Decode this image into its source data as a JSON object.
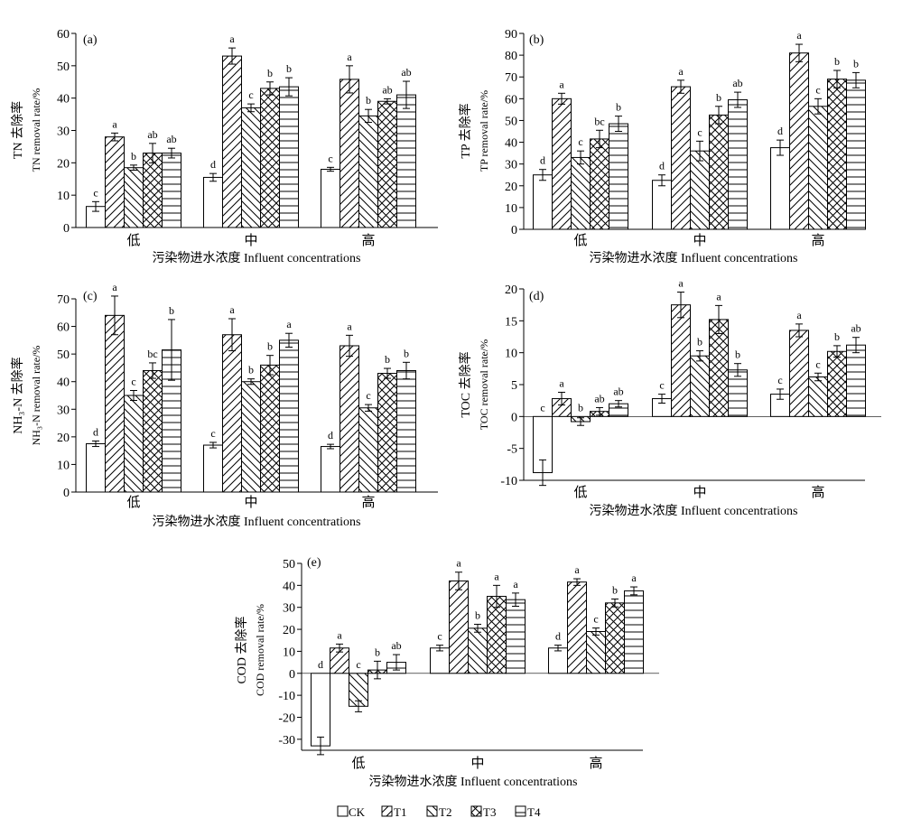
{
  "legend": [
    {
      "name": "CK",
      "pattern": "none"
    },
    {
      "name": "T1",
      "pattern": "diag-forward"
    },
    {
      "name": "T2",
      "pattern": "diag-back"
    },
    {
      "name": "T3",
      "pattern": "cross"
    },
    {
      "name": "T4",
      "pattern": "horizontal"
    }
  ],
  "chart_data": [
    {
      "type": "bar",
      "panel_label": "(a)",
      "ylabel_cn": "TN 去除率",
      "ylabel_en": "TN removal rate/%",
      "xlabel": "污染物进水浓度 Influent concentrations",
      "categories": [
        "低",
        "中",
        "高"
      ],
      "ylim": [
        0,
        60
      ],
      "yticks": [
        0,
        10,
        20,
        30,
        40,
        50,
        60
      ],
      "series": [
        {
          "name": "CK",
          "values": [
            6.5,
            15.5,
            18.0
          ],
          "errors": [
            1.5,
            1.2,
            0.6
          ],
          "letters": [
            "c",
            "d",
            "c"
          ]
        },
        {
          "name": "T1",
          "values": [
            28.0,
            53.0,
            45.8
          ],
          "errors": [
            1.2,
            2.5,
            4.2
          ],
          "letters": [
            "a",
            "a",
            "a"
          ]
        },
        {
          "name": "T2",
          "values": [
            18.5,
            37.0,
            34.5
          ],
          "errors": [
            0.8,
            1.2,
            2.0
          ],
          "letters": [
            "b",
            "c",
            "b"
          ]
        },
        {
          "name": "T3",
          "values": [
            23.0,
            43.0,
            39.0
          ],
          "errors": [
            3.0,
            2.0,
            0.8
          ],
          "letters": [
            "ab",
            "b",
            "ab"
          ]
        },
        {
          "name": "T4",
          "values": [
            23.0,
            43.5,
            41.0
          ],
          "errors": [
            1.5,
            2.8,
            4.2
          ],
          "letters": [
            "ab",
            "b",
            "ab"
          ]
        }
      ]
    },
    {
      "type": "bar",
      "panel_label": "(b)",
      "ylabel_cn": "TP 去除率",
      "ylabel_en": "TP removal rate/%",
      "xlabel": "污染物进水浓度 Influent concentrations",
      "categories": [
        "低",
        "中",
        "高"
      ],
      "ylim": [
        0,
        90
      ],
      "yticks": [
        0,
        10,
        20,
        30,
        40,
        50,
        60,
        70,
        80,
        90
      ],
      "series": [
        {
          "name": "CK",
          "values": [
            25.0,
            22.5,
            37.5
          ],
          "errors": [
            2.5,
            2.5,
            3.5
          ],
          "letters": [
            "d",
            "d",
            "d"
          ]
        },
        {
          "name": "T1",
          "values": [
            60.0,
            65.5,
            81.0
          ],
          "errors": [
            2.5,
            3.0,
            4.0
          ],
          "letters": [
            "a",
            "a",
            "a"
          ]
        },
        {
          "name": "T2",
          "values": [
            33.0,
            36.0,
            56.5
          ],
          "errors": [
            3.0,
            4.5,
            3.5
          ],
          "letters": [
            "c",
            "c",
            "c"
          ]
        },
        {
          "name": "T3",
          "values": [
            41.5,
            52.5,
            69.0
          ],
          "errors": [
            4.0,
            4.0,
            4.0
          ],
          "letters": [
            "bc",
            "b",
            "b"
          ]
        },
        {
          "name": "T4",
          "values": [
            48.5,
            59.5,
            68.5
          ],
          "errors": [
            3.5,
            3.5,
            3.5
          ],
          "letters": [
            "b",
            "ab",
            "b"
          ]
        }
      ]
    },
    {
      "type": "bar",
      "panel_label": "(c)",
      "ylabel_cn": "NH₃-N 去除率",
      "ylabel_en": "NH₃-N removal rate/%",
      "xlabel": "污染物进水浓度 Influent concentrations",
      "categories": [
        "低",
        "中",
        "高"
      ],
      "ylim": [
        0,
        70
      ],
      "yticks": [
        0,
        10,
        20,
        30,
        40,
        50,
        60,
        70
      ],
      "series": [
        {
          "name": "CK",
          "values": [
            17.5,
            17.0,
            16.5
          ],
          "errors": [
            1.0,
            1.0,
            0.8
          ],
          "letters": [
            "d",
            "c",
            "d"
          ]
        },
        {
          "name": "T1",
          "values": [
            64.0,
            57.0,
            53.0
          ],
          "errors": [
            7.0,
            5.8,
            3.8
          ],
          "letters": [
            "a",
            "a",
            "a"
          ]
        },
        {
          "name": "T2",
          "values": [
            35.0,
            40.0,
            30.5
          ],
          "errors": [
            1.8,
            1.0,
            1.2
          ],
          "letters": [
            "c",
            "b",
            "c"
          ]
        },
        {
          "name": "T3",
          "values": [
            44.0,
            46.0,
            43.0
          ],
          "errors": [
            2.8,
            3.5,
            1.8
          ],
          "letters": [
            "bc",
            "b",
            "b"
          ]
        },
        {
          "name": "T4",
          "values": [
            51.5,
            55.0,
            44.0
          ],
          "errors": [
            11.0,
            2.5,
            3.0
          ],
          "letters": [
            "b",
            "a",
            "b"
          ]
        }
      ]
    },
    {
      "type": "bar",
      "panel_label": "(d)",
      "ylabel_cn": "TOC 去除率",
      "ylabel_en": "TOC removal rate/%",
      "xlabel": "污染物进水浓度 Influent concentrations",
      "categories": [
        "低",
        "中",
        "高"
      ],
      "ylim": [
        -10,
        20
      ],
      "yticks": [
        -10,
        -5,
        0,
        5,
        10,
        15,
        20
      ],
      "series": [
        {
          "name": "CK",
          "values": [
            -8.8,
            2.8,
            3.5
          ],
          "errors": [
            2.0,
            0.7,
            0.8
          ],
          "letters": [
            "c",
            "c",
            "c"
          ]
        },
        {
          "name": "T1",
          "values": [
            2.8,
            17.5,
            13.5
          ],
          "errors": [
            1.0,
            2.0,
            1.0
          ],
          "letters": [
            "a",
            "a",
            "a"
          ]
        },
        {
          "name": "T2",
          "values": [
            -0.8,
            9.5,
            6.2
          ],
          "errors": [
            0.6,
            0.8,
            0.6
          ],
          "letters": [
            "b",
            "b",
            "c"
          ]
        },
        {
          "name": "T3",
          "values": [
            0.8,
            15.2,
            10.2
          ],
          "errors": [
            0.6,
            2.2,
            0.9
          ],
          "letters": [
            "ab",
            "a",
            "b"
          ]
        },
        {
          "name": "T4",
          "values": [
            2.0,
            7.3,
            11.2
          ],
          "errors": [
            0.5,
            1.0,
            1.2
          ],
          "letters": [
            "ab",
            "b",
            "ab"
          ]
        }
      ]
    },
    {
      "type": "bar",
      "panel_label": "(e)",
      "ylabel_cn": "COD 去除率",
      "ylabel_en": "COD removal rate/%",
      "xlabel": "污染物进水浓度 Influent concentrations",
      "categories": [
        "低",
        "中",
        "高"
      ],
      "ylim": [
        -35,
        50
      ],
      "yticks": [
        -30,
        -20,
        -10,
        0,
        10,
        20,
        30,
        40,
        50
      ],
      "series": [
        {
          "name": "CK",
          "values": [
            -33.0,
            11.5,
            11.5
          ],
          "errors": [
            4.0,
            1.3,
            1.3
          ],
          "letters": [
            "d",
            "c",
            "d"
          ]
        },
        {
          "name": "T1",
          "values": [
            11.5,
            42.0,
            41.5
          ],
          "errors": [
            1.8,
            4.0,
            1.5
          ],
          "letters": [
            "a",
            "a",
            "a"
          ]
        },
        {
          "name": "T2",
          "values": [
            -15.0,
            20.5,
            19.0
          ],
          "errors": [
            2.5,
            1.8,
            1.6
          ],
          "letters": [
            "c",
            "b",
            "c"
          ]
        },
        {
          "name": "T3",
          "values": [
            1.5,
            35.0,
            32.0
          ],
          "errors": [
            4.0,
            5.0,
            1.8
          ],
          "letters": [
            "b",
            "a",
            "b"
          ]
        },
        {
          "name": "T4",
          "values": [
            5.0,
            33.5,
            37.5
          ],
          "errors": [
            3.5,
            3.0,
            1.8
          ],
          "letters": [
            "ab",
            "a",
            "a"
          ]
        }
      ]
    }
  ]
}
